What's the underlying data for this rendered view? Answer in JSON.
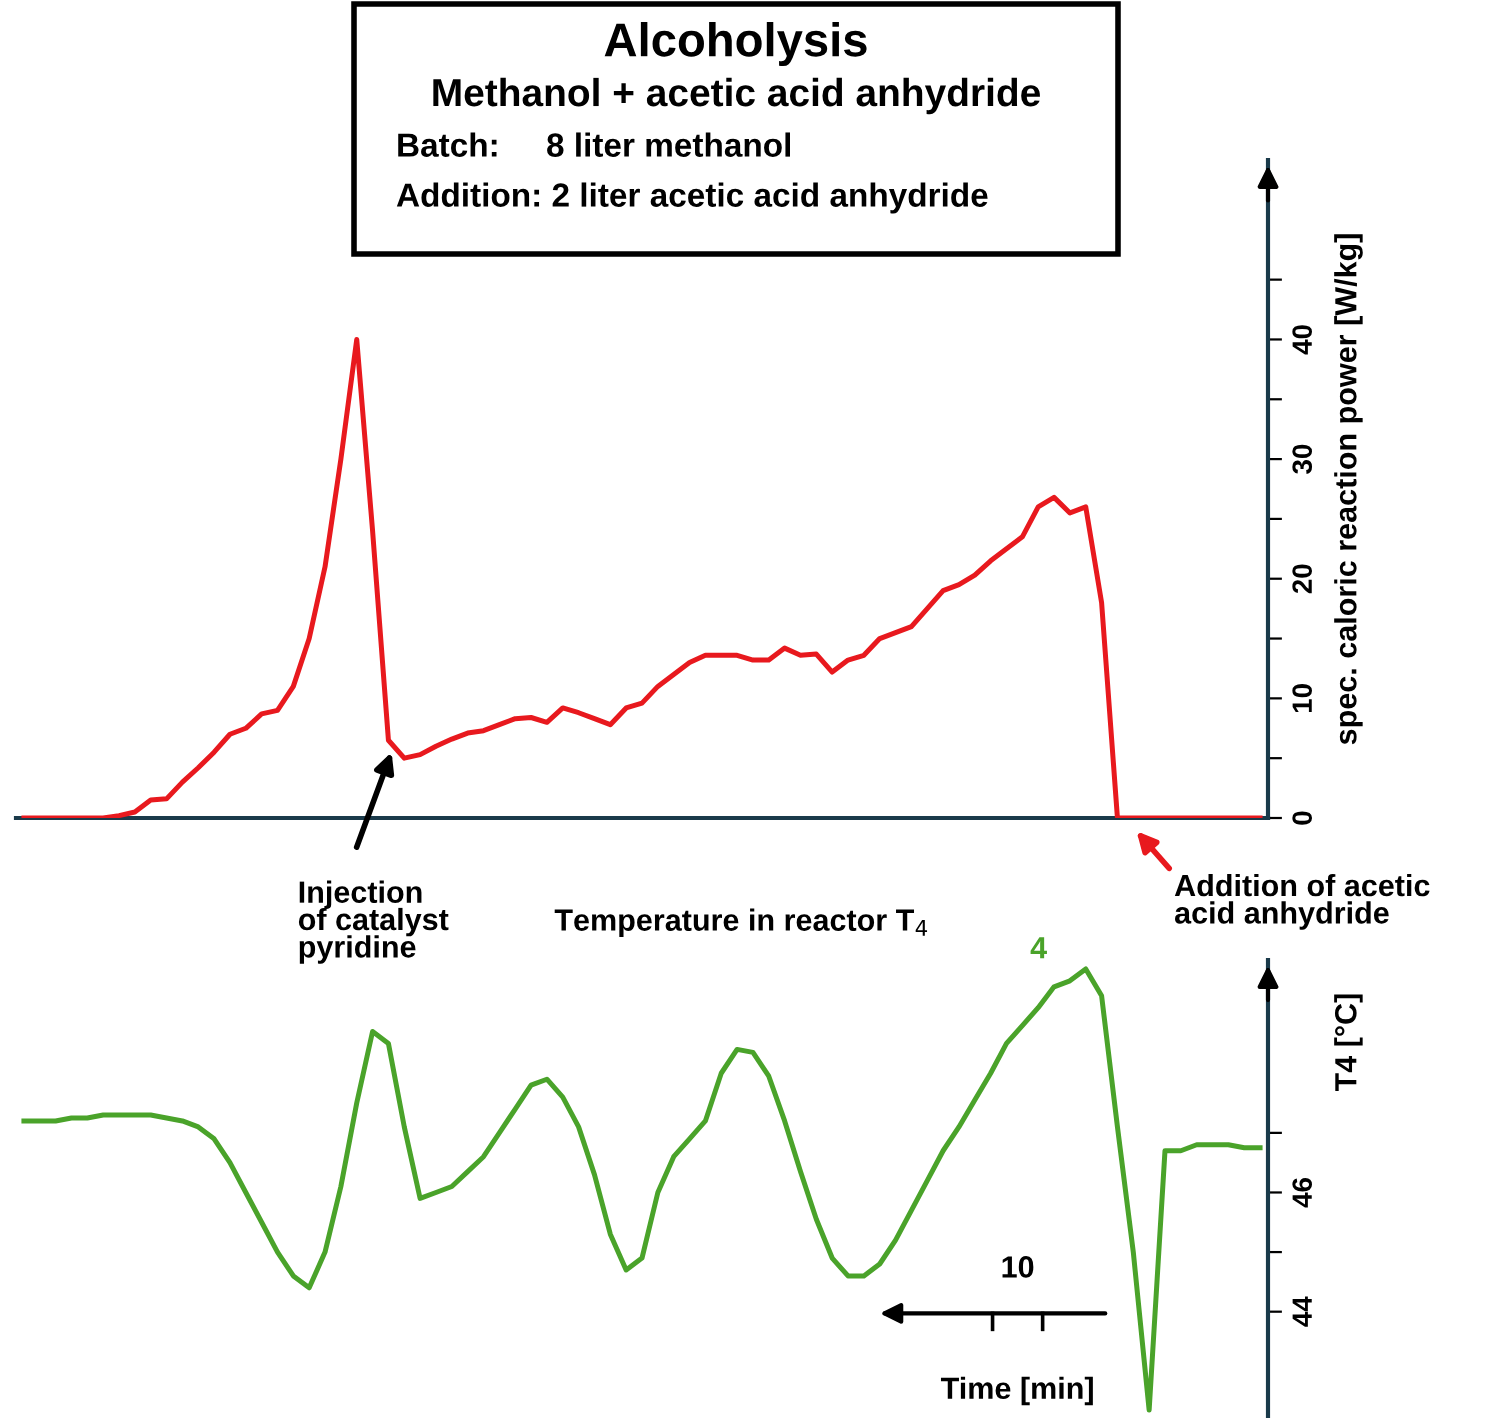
{
  "chart_data": [
    {
      "type": "line",
      "title": "Alcoholysis",
      "subtitle": "Methanol + acetic acid anhydride",
      "annotations": [
        "Batch:     8 liter methanol",
        "Addition: 2 liter acetic acid anhydride",
        "Injection\nof catalyst\npyridine",
        "Addition of acetic\nacid anhydride"
      ],
      "ylabel": "spec. caloric reaction power [W/kg]",
      "categories": [
        null,
        null,
        null,
        null,
        null,
        null,
        null,
        null,
        null,
        null,
        null,
        null,
        null,
        null,
        null,
        null,
        null,
        null,
        null,
        null,
        null,
        null,
        null,
        null,
        null,
        null,
        null,
        null,
        null,
        null,
        null,
        null,
        null,
        null,
        null,
        null,
        null,
        null,
        null,
        null,
        null,
        null,
        null,
        null,
        null,
        null,
        null,
        null,
        null,
        null,
        null,
        null,
        null,
        null,
        null,
        null,
        null,
        null,
        null,
        null,
        null,
        null,
        null,
        null,
        null,
        null,
        null,
        null,
        null,
        null,
        null,
        null,
        null,
        null,
        null,
        null,
        null,
        null,
        null
      ],
      "series": [
        {
          "color": "#e8191e",
          "values": [
            0,
            0,
            0,
            0,
            0,
            0,
            0.2,
            0.5,
            1.5,
            1.6,
            3,
            4.2,
            5.5,
            7,
            7.5,
            8.7,
            9,
            11,
            15,
            21,
            30,
            40,
            24,
            6.5,
            5,
            5.3,
            6,
            6.6,
            7.1,
            7.3,
            7.8,
            8.3,
            8.4,
            8,
            9.2,
            8.8,
            8.3,
            7.8,
            9.2,
            9.6,
            11,
            12,
            13,
            13.6,
            13.6,
            13.6,
            13.2,
            13.2,
            14.2,
            13.6,
            13.7,
            12.2,
            13.2,
            13.6,
            15,
            15.5,
            16,
            17.5,
            19,
            19.5,
            20.3,
            21.5,
            22.5,
            23.5,
            26,
            26.8,
            25.5,
            26,
            18,
            0,
            0,
            0,
            0,
            0,
            0,
            0,
            0,
            0,
            0
          ]
        }
      ],
      "ylim": [
        0,
        55
      ],
      "yticks": [
        0,
        {
          "value": 5,
          "label": null
        },
        10,
        {
          "value": 15,
          "label": null
        },
        20,
        {
          "value": 25,
          "label": null
        },
        30,
        {
          "value": 35,
          "label": null
        },
        40,
        {
          "value": 45,
          "label": null
        }
      ],
      "tick_labels": "y",
      "grid": false,
      "legend": false,
      "marker": "none",
      "line_style": "solid"
    },
    {
      "type": "line",
      "annotations": [
        "Temperature in reactor T$_{4}$",
        "10",
        "Time [min]"
      ],
      "ylabel": "T4 [°C]",
      "categories": [
        null,
        null,
        null,
        null,
        null,
        null,
        null,
        null,
        null,
        null,
        null,
        null,
        null,
        null,
        null,
        null,
        null,
        null,
        null,
        null,
        null,
        null,
        null,
        null,
        null,
        null,
        null,
        null,
        null,
        null,
        null,
        null,
        null,
        null,
        null,
        null,
        null,
        null,
        null,
        null,
        null,
        null,
        null,
        null,
        null,
        null,
        null,
        null,
        null,
        null,
        null,
        null,
        null,
        null,
        null,
        null,
        null,
        null,
        null,
        null,
        null,
        null,
        null,
        null,
        null,
        null,
        null,
        null,
        null,
        null,
        null,
        null,
        null,
        null,
        null,
        null,
        null,
        null,
        null
      ],
      "series": [
        {
          "name": "4",
          "color": "#4aa32a",
          "values": [
            47.2,
            47.2,
            47.2,
            47.25,
            47.25,
            47.3,
            47.3,
            47.3,
            47.3,
            47.25,
            47.2,
            47.1,
            46.9,
            46.5,
            46.0,
            45.5,
            45.0,
            44.6,
            44.4,
            45.0,
            46.1,
            47.5,
            48.7,
            48.5,
            47.1,
            45.9,
            46.0,
            46.1,
            46.35,
            46.6,
            47.0,
            47.4,
            47.8,
            47.9,
            47.6,
            47.1,
            46.3,
            45.3,
            44.7,
            44.9,
            46.0,
            46.6,
            46.9,
            47.2,
            48.0,
            48.4,
            48.35,
            47.95,
            47.2,
            46.35,
            45.55,
            44.9,
            44.6,
            44.6,
            44.8,
            45.2,
            45.7,
            46.2,
            46.7,
            47.1,
            47.55,
            48.0,
            48.5,
            48.8,
            49.1,
            49.45,
            49.55,
            49.75,
            49.3,
            47.1,
            45.0,
            42.35,
            46.7,
            46.7,
            46.8,
            46.8,
            46.8,
            46.75,
            46.75
          ]
        }
      ],
      "ylim": [
        42.25,
        49.9
      ],
      "yticks": [
        44,
        {
          "value": 45,
          "label": null
        },
        46,
        {
          "value": 47,
          "label": null
        }
      ],
      "tick_labels": "y",
      "grid": false,
      "legend": false,
      "marker": "none",
      "line_style": "solid"
    }
  ]
}
